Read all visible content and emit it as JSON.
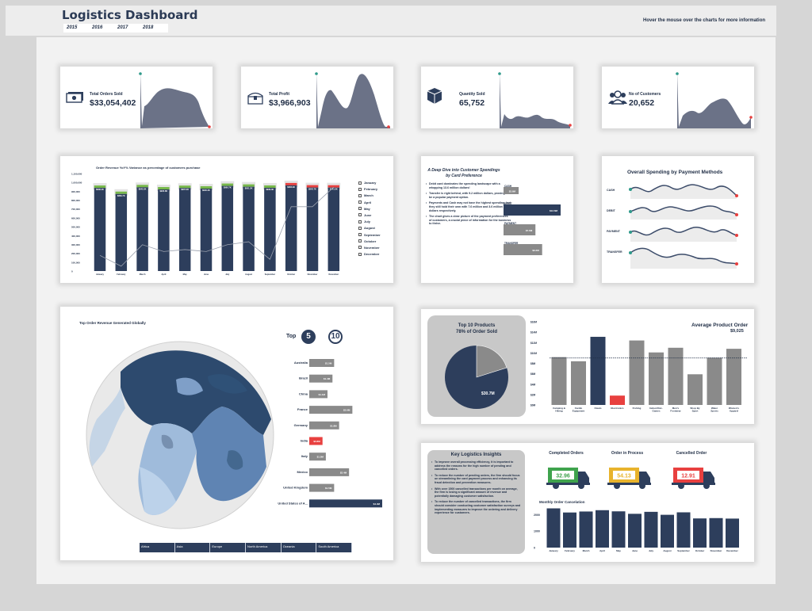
{
  "header": {
    "title": "Logistics Dashboard",
    "years": [
      "2015",
      "2016",
      "2017",
      "2018"
    ],
    "hint": "Hover the mouse over the charts for more information"
  },
  "kpis": [
    {
      "label": "Total Orders Sold",
      "value": "$33,054,402",
      "icon": "money-icon"
    },
    {
      "label": "Total Profit",
      "value": "$3,966,903",
      "icon": "treasure-chest-icon"
    },
    {
      "label": "Quantity Sold",
      "value": "65,752",
      "icon": "box-icon"
    },
    {
      "label": "No of Customers",
      "value": "20,652",
      "icon": "customers-icon"
    }
  ],
  "colors": {
    "navy": "#2d3e5c",
    "gray": "#8a8a8a",
    "red": "#e8403f",
    "green": "#77b84a",
    "teal": "#2f9a8b",
    "spark": "#6b7287"
  },
  "revenue_chart": {
    "title": "Order Revenue YoY% Variance as percentage of customers purchase",
    "y_ticks": [
      "1,100,000",
      "1,000,000",
      "900,000",
      "800,000",
      "700,000",
      "600,000",
      "500,000",
      "400,000",
      "300,000",
      "200,000",
      "100,000",
      "0"
    ],
    "months": [
      "January",
      "February",
      "March",
      "April",
      "May",
      "June",
      "July",
      "August",
      "September",
      "October",
      "November",
      "December"
    ],
    "bar_labels": [
      "$938.4K",
      "$869.7K",
      "$945.3K",
      "$920.8K",
      "$937.2K",
      "$930.2K",
      "$960.7K",
      "$951.2K",
      "$939.3K",
      "$966.9K",
      "$942.7K",
      "$941.8K"
    ]
  },
  "card_pref": {
    "title": "A Deep Dive into Customer Spendings by Card Preference",
    "bullets": [
      "Debit card dominates the spending landscape with a whopping 13.6 million dollars!",
      "Transfer is right behind, with 9.2 million dollars, proving to be a popular payment option.",
      "Payments and Cash may not have the highest spending, but they still hold their own with 7.6 million and 3.6 million dollars respectively.",
      "The chart gives a clear picture of the payment preferences of customers, a crucial piece of information for the business to thrive."
    ]
  },
  "payment": {
    "title": "Overall Spending by Payment Methods",
    "methods": [
      "CASH",
      "DEBIT",
      "PAYMENT",
      "TRANSFER"
    ]
  },
  "map": {
    "title": "Top Order Revenue Generated Globally",
    "top_label": "Top",
    "top_options": [
      "5",
      "10"
    ],
    "continents": [
      "Africa",
      "Asia",
      "Europe",
      "North America",
      "Oceania",
      "South America"
    ]
  },
  "top_products": {
    "title_line1": "Top 10 Products",
    "title_line2": "78% of Order Sold",
    "pie_label": "$30.7M"
  },
  "avg_order": {
    "title": "Average Product Order",
    "value": "$9,025"
  },
  "insights": {
    "title": "Key Logistics Insights",
    "bullets": [
      "To improve overall processing efficiency, it is important to address the reasons for the high number of pending and cancelled orders.",
      "To reduce the number of pending orders, the firm should focus on streamlining the card payment process and enhancing its fraud detection and prevention measures.",
      "With over 1500 cancelled transactions per month on average, the firm is losing a significant amount of revenue and potentially damaging customer satisfaction.",
      "To reduce the number of cancelled transactions, the firm should consider conducting customer satisfaction surveys and implementing measures to improve the ordering and delivery experience for customers."
    ]
  },
  "orders": [
    {
      "title": "Completed Orders",
      "value": "32.96",
      "color": "#3fa34d"
    },
    {
      "title": "Order in Process",
      "value": "54.13",
      "color": "#e8b32c"
    },
    {
      "title": "Cancelled Order",
      "value": "12.91",
      "color": "#e8403f"
    }
  ],
  "chart_data": [
    {
      "type": "bar",
      "title": "Order Revenue YoY% Variance as percentage of customers purchase",
      "categories": [
        "January",
        "February",
        "March",
        "April",
        "May",
        "June",
        "July",
        "August",
        "September",
        "October",
        "November",
        "December"
      ],
      "series": [
        {
          "values": [
            938400,
            869700,
            945300,
            920800,
            937200,
            930200,
            960700,
            951200,
            939300,
            966900,
            942700,
            941800
          ]
        },
        {
          "values": [
            0.16,
            0.05,
            0.27,
            0.2,
            0.22,
            0.2,
            0.27,
            0.3,
            0.12,
            0.66,
            0.66,
            0.86
          ]
        }
      ],
      "ylim": [
        0,
        1100000
      ],
      "legend": "right"
    },
    {
      "type": "bar",
      "title": "A Deep Dive into Customer Spendings by Card Preference",
      "categories": [
        "CASH",
        "DEBIT",
        "PAYMENT",
        "TRANSFER"
      ],
      "values": [
        3.6,
        13.6,
        7.6,
        9.2
      ],
      "labels": [
        "$3.6M",
        "$13.6M",
        "$7.6M",
        "$9.2M"
      ]
    },
    {
      "type": "bar",
      "title": "Top Order Revenue Generated Globally",
      "categories": [
        "Australia",
        "Brazil",
        "China",
        "France",
        "Germany",
        "India",
        "Italy",
        "Mexico",
        "United Kingdom",
        "United States of A..."
      ],
      "values": [
        1.5,
        1.4,
        1.1,
        2.6,
        1.8,
        0.8,
        1.0,
        2.4,
        1.5,
        4.4
      ],
      "labels": [
        "$1.5M",
        "$1.4M",
        "$1.1M",
        "$2.6M",
        "$1.8M",
        "$0.8M",
        "$1.0M",
        "$2.4M",
        "$1.5M",
        "$4.4M"
      ]
    },
    {
      "type": "bar",
      "title": "Average Product Order",
      "categories": [
        "Camping & Hiking",
        "Cardio Equipment",
        "Cleats",
        "Electronics",
        "Fishing",
        "Indoor/Out.. Games",
        "Men's Footwear",
        "Shop By Sport",
        "Water Sports",
        "Women's Apparel"
      ],
      "values": [
        9200,
        8400,
        13100,
        1800,
        12400,
        10100,
        11000,
        5900,
        9100,
        10800
      ],
      "y_ticks": [
        "$16M",
        "$14M",
        "$12M",
        "$10M",
        "$8M",
        "$6M",
        "$4M",
        "$2M",
        "$0M"
      ],
      "ylim": [
        0,
        16000
      ]
    },
    {
      "type": "bar",
      "title": "Monthly Order Cancelation",
      "categories": [
        "January",
        "February",
        "March",
        "April",
        "May",
        "June",
        "July",
        "August",
        "September",
        "October",
        "November",
        "December"
      ],
      "values": [
        2380,
        2130,
        2190,
        2270,
        2200,
        2050,
        2170,
        1990,
        2140,
        1770,
        1790,
        1760
      ],
      "y_ticks": [
        "2000",
        "1000",
        "0"
      ],
      "ylim": [
        0,
        2500
      ]
    }
  ]
}
